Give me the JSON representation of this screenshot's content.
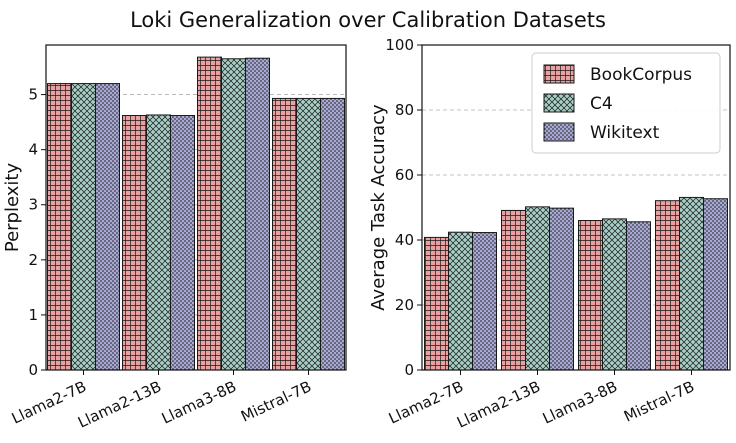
{
  "title": "Loki Generalization over Calibration Datasets",
  "colors": {
    "BookCorpus": "#e8a0a0",
    "C4": "#a7cfc6",
    "Wikitext": "#a7a9d3",
    "grid": "#b0b0b0"
  },
  "legend": {
    "placement": "top-right of right panel",
    "items": [
      {
        "label": "BookCorpus",
        "pattern": "grid"
      },
      {
        "label": "C4",
        "pattern": "crosshatch"
      },
      {
        "label": "Wikitext",
        "pattern": "dots"
      }
    ]
  },
  "chart_data": [
    {
      "type": "bar",
      "title": "",
      "xlabel": "",
      "ylabel": "Perplexity",
      "ylim": [
        0,
        5.9
      ],
      "yticks": [
        "0",
        "1",
        "2",
        "3",
        "4",
        "5"
      ],
      "categories": [
        "Llama2-7B",
        "Llama2-13B",
        "Llama3-8B",
        "Mistral-7B"
      ],
      "series": [
        {
          "name": "BookCorpus",
          "values": [
            5.2,
            4.62,
            5.68,
            4.93
          ]
        },
        {
          "name": "C4",
          "values": [
            5.2,
            4.63,
            5.65,
            4.93
          ]
        },
        {
          "name": "Wikitext",
          "values": [
            5.2,
            4.62,
            5.66,
            4.93
          ]
        }
      ]
    },
    {
      "type": "bar",
      "title": "",
      "xlabel": "",
      "ylabel": "Average Task Accuracy",
      "ylim": [
        0,
        100
      ],
      "yticks": [
        "0",
        "20",
        "40",
        "60",
        "80",
        "100"
      ],
      "categories": [
        "Llama2-7B",
        "Llama2-13B",
        "Llama3-8B",
        "Mistral-7B"
      ],
      "series": [
        {
          "name": "BookCorpus",
          "values": [
            40.8,
            49.1,
            46.0,
            52.1
          ]
        },
        {
          "name": "C4",
          "values": [
            42.4,
            50.2,
            46.5,
            53.1
          ]
        },
        {
          "name": "Wikitext",
          "values": [
            42.3,
            49.8,
            45.6,
            52.7
          ]
        }
      ]
    }
  ]
}
